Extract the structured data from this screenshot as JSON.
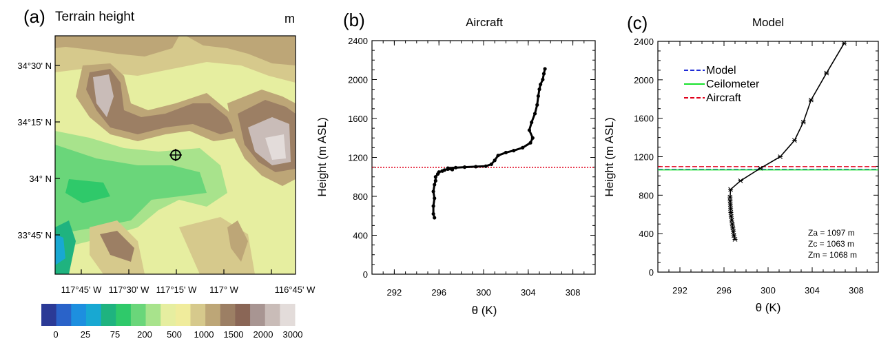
{
  "chart_data": [
    {
      "type": "heatmap",
      "panel_label": "(a)",
      "title": "Terrain height",
      "units": "m",
      "x_tick_labels": [
        "117°45' W",
        "117°30' W",
        "117°15' W",
        "117° W",
        "116°45' W"
      ],
      "y_tick_labels": [
        "34°30' N",
        "34°15' N",
        "34° N",
        "33°45' N"
      ],
      "colorbar_labels": [
        "0",
        "25",
        "75",
        "200",
        "500",
        "1000",
        "1500",
        "2000",
        "3000"
      ],
      "colorbar_colors": [
        "#2b3a96",
        "#2a63c9",
        "#1d8fdf",
        "#18a8d2",
        "#1fb37f",
        "#2fc96a",
        "#6ad67a",
        "#a8e38c",
        "#e6eea0",
        "#f0ec9c",
        "#d6c98c",
        "#bda677",
        "#9c7f64",
        "#8a6656",
        "#a89592",
        "#c9bcb8",
        "#e3dcda"
      ],
      "marker": "aircraft site (circled cross)"
    },
    {
      "type": "line",
      "panel_label": "(b)",
      "title": "Aircraft",
      "xlabel": "θ (K)",
      "ylabel": "Height (m ASL)",
      "xlim": [
        290,
        310
      ],
      "ylim": [
        0,
        2400
      ],
      "x_ticks": [
        292,
        296,
        300,
        304,
        308
      ],
      "y_ticks": [
        0,
        400,
        800,
        1200,
        1600,
        2000,
        2400
      ],
      "series": [
        {
          "x": [
            295.6,
            295.5,
            295.5,
            295.6,
            295.5,
            295.6,
            295.7,
            295.7,
            295.9,
            296.0,
            296.3,
            296.5,
            296.8,
            297.2,
            296.8,
            297.5,
            298.3,
            299.3,
            300.2,
            300.7,
            301.0,
            301.3,
            302.0,
            302.7,
            303.5,
            304.2,
            304.4,
            304.1,
            304.3,
            304.6,
            304.8,
            304.9,
            305.0,
            305.1,
            305.3,
            305.4,
            305.5
          ],
          "y": [
            580,
            620,
            700,
            780,
            850,
            920,
            960,
            1000,
            1030,
            1050,
            1060,
            1070,
            1080,
            1075,
            1090,
            1095,
            1100,
            1105,
            1110,
            1130,
            1170,
            1220,
            1250,
            1270,
            1300,
            1350,
            1400,
            1480,
            1560,
            1650,
            1740,
            1830,
            1900,
            1950,
            2000,
            2060,
            2110
          ]
        }
      ],
      "reference_line": {
        "y": 1097,
        "color": "#e0001b",
        "style": "dotted"
      }
    },
    {
      "type": "line",
      "panel_label": "(c)",
      "title": "Model",
      "xlabel": "θ (K)",
      "ylabel": "Height (m ASL)",
      "xlim": [
        290,
        310
      ],
      "ylim": [
        0,
        2400
      ],
      "x_ticks": [
        292,
        296,
        300,
        304,
        308
      ],
      "y_ticks": [
        0,
        400,
        800,
        1200,
        1600,
        2000,
        2400
      ],
      "series": [
        {
          "x": [
            297.0,
            296.9,
            296.85,
            296.8,
            296.75,
            296.7,
            296.65,
            296.62,
            296.6,
            296.58,
            296.56,
            296.55,
            296.6,
            297.5,
            299.3,
            301.1,
            302.4,
            303.2,
            303.9,
            305.3,
            306.9
          ],
          "y": [
            340,
            380,
            420,
            460,
            500,
            540,
            580,
            620,
            660,
            700,
            740,
            780,
            860,
            950,
            1080,
            1200,
            1370,
            1560,
            1790,
            2070,
            2380
          ]
        }
      ],
      "legend": [
        {
          "label": "Model",
          "color": "#1f2bd6",
          "style": "dashed"
        },
        {
          "label": "Ceilometer",
          "color": "#17e12b",
          "style": "solid"
        },
        {
          "label": "Aircraft",
          "color": "#e0001b",
          "style": "dashed"
        }
      ],
      "legend_position": "top-left",
      "hlines": [
        {
          "y": 1068,
          "color": "#1f2bd6"
        },
        {
          "y": 1063,
          "color": "#17e12b"
        },
        {
          "y": 1097,
          "color": "#e0001b"
        }
      ],
      "annotations": [
        "Za = 1097 m",
        "Zc = 1063 m",
        "Zm = 1068 m"
      ]
    }
  ]
}
